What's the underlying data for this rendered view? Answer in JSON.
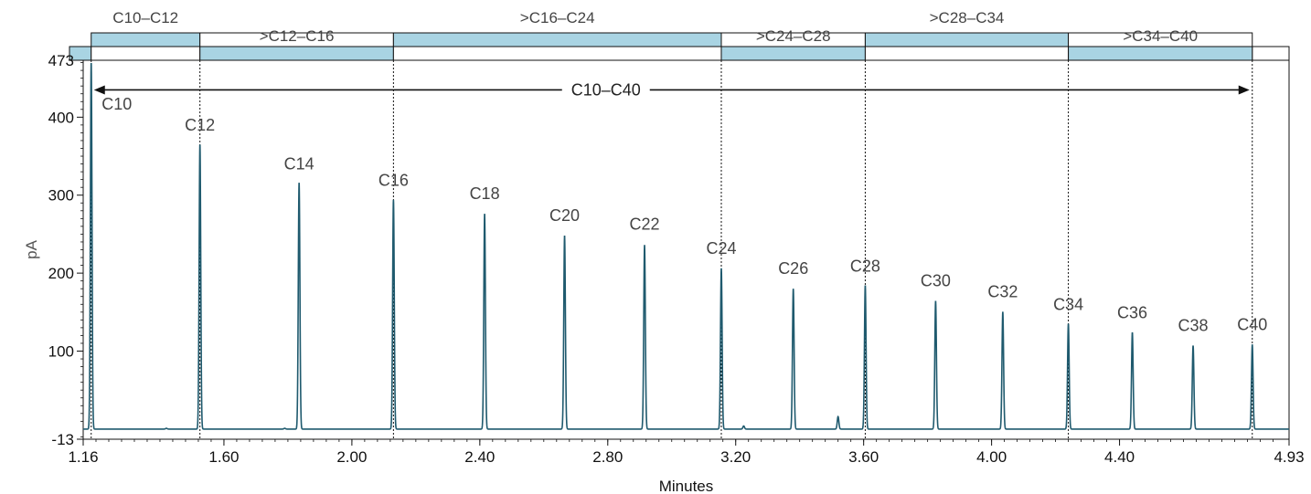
{
  "chart_data": {
    "type": "line",
    "xlabel": "Minutes",
    "ylabel": "pA",
    "xlim": [
      1.16,
      4.93
    ],
    "ylim": [
      -13,
      473
    ],
    "x_ticks": [
      {
        "value": 1.16,
        "label": "1.16"
      },
      {
        "value": 1.6,
        "label": "1.60"
      },
      {
        "value": 2.0,
        "label": "2.00"
      },
      {
        "value": 2.4,
        "label": "2.40"
      },
      {
        "value": 2.8,
        "label": "2.80"
      },
      {
        "value": 3.2,
        "label": "3.20"
      },
      {
        "value": 3.6,
        "label": "3.60"
      },
      {
        "value": 4.0,
        "label": "4.00"
      },
      {
        "value": 4.4,
        "label": "4.40"
      },
      {
        "value": 4.93,
        "label": "4.93"
      }
    ],
    "y_ticks": [
      {
        "value": -13,
        "label": "-13"
      },
      {
        "value": 100,
        "label": "100"
      },
      {
        "value": 200,
        "label": "200"
      },
      {
        "value": 300,
        "label": "300"
      },
      {
        "value": 400,
        "label": "400"
      },
      {
        "value": 473,
        "label": "473"
      }
    ],
    "baseline": 0,
    "peaks": [
      {
        "label": "C10",
        "x": 1.185,
        "y": 470,
        "label_y": 410
      },
      {
        "label": "C12",
        "x": 1.525,
        "y": 365,
        "label_y": 383
      },
      {
        "label": "C14",
        "x": 1.835,
        "y": 316,
        "label_y": 333
      },
      {
        "label": "C16",
        "x": 2.13,
        "y": 294,
        "label_y": 312
      },
      {
        "label": "C18",
        "x": 2.415,
        "y": 276,
        "label_y": 295
      },
      {
        "label": "C20",
        "x": 2.665,
        "y": 248,
        "label_y": 267
      },
      {
        "label": "C22",
        "x": 2.915,
        "y": 236,
        "label_y": 256
      },
      {
        "label": "C24",
        "x": 3.155,
        "y": 206,
        "label_y": 225
      },
      {
        "label": "C26",
        "x": 3.38,
        "y": 180,
        "label_y": 199
      },
      {
        "label": "C28",
        "x": 3.605,
        "y": 184,
        "label_y": 202
      },
      {
        "label": "C30",
        "x": 3.825,
        "y": 164,
        "label_y": 183
      },
      {
        "label": "C32",
        "x": 4.035,
        "y": 150,
        "label_y": 169
      },
      {
        "label": "C34",
        "x": 4.24,
        "y": 135,
        "label_y": 153
      },
      {
        "label": "C36",
        "x": 4.44,
        "y": 124,
        "label_y": 142
      },
      {
        "label": "C38",
        "x": 4.63,
        "y": 107,
        "label_y": 126
      },
      {
        "label": "C40",
        "x": 4.815,
        "y": 108,
        "label_y": 127
      }
    ],
    "minor_peaks": [
      {
        "x": 1.42,
        "y": 1
      },
      {
        "x": 1.79,
        "y": 1
      },
      {
        "x": 3.225,
        "y": 4
      },
      {
        "x": 3.52,
        "y": 16
      }
    ],
    "ranges": [
      {
        "label": "C10–C12",
        "start": 1.185,
        "end": 1.525,
        "position": "top"
      },
      {
        "label": ">C12–C16",
        "start": 1.525,
        "end": 2.13,
        "position": "bottom"
      },
      {
        "label": ">C16–C24",
        "start": 2.13,
        "end": 3.155,
        "position": "top"
      },
      {
        "label": ">C24–C28",
        "start": 3.155,
        "end": 3.605,
        "position": "bottom"
      },
      {
        "label": ">C28–C34",
        "start": 3.605,
        "end": 4.24,
        "position": "top"
      },
      {
        "label": ">C34–C40",
        "start": 4.24,
        "end": 4.815,
        "position": "bottom"
      }
    ],
    "boundaries": [
      1.185,
      1.525,
      2.13,
      3.155,
      3.605,
      4.24,
      4.815
    ],
    "span": {
      "label": "C10–C40",
      "start": 1.185,
      "end": 4.815,
      "y": 435
    },
    "colors": {
      "trace": "#1f5a6e",
      "range_fill": "#a9d4e3",
      "range_stroke": "#111111",
      "axis": "#111111"
    }
  }
}
